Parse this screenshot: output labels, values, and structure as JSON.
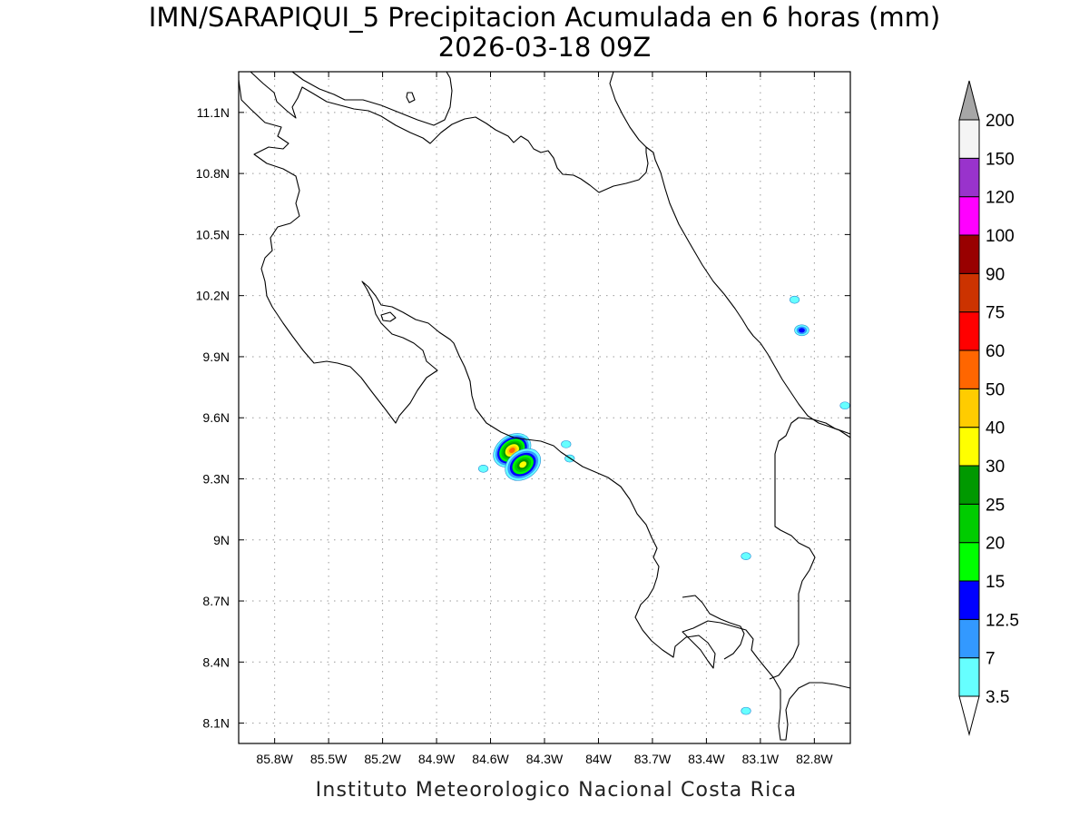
{
  "title": {
    "line1": "IMN/SARAPIQUI_5 Precipitacion Acumulada en 6 horas (mm)",
    "line2": "2026-03-18 09Z"
  },
  "footer": "Instituto Meteorologico Nacional Costa Rica",
  "map": {
    "lon_range": [
      -86.0,
      -82.6
    ],
    "lat_range": [
      8.0,
      11.3
    ],
    "x_ticks": [
      {
        "value": -85.8,
        "label": "85.8W"
      },
      {
        "value": -85.5,
        "label": "85.5W"
      },
      {
        "value": -85.2,
        "label": "85.2W"
      },
      {
        "value": -84.9,
        "label": "84.9W"
      },
      {
        "value": -84.6,
        "label": "84.6W"
      },
      {
        "value": -84.3,
        "label": "84.3W"
      },
      {
        "value": -84.0,
        "label": "84W"
      },
      {
        "value": -83.7,
        "label": "83.7W"
      },
      {
        "value": -83.4,
        "label": "83.4W"
      },
      {
        "value": -83.1,
        "label": "83.1W"
      },
      {
        "value": -82.8,
        "label": "82.8W"
      }
    ],
    "y_ticks": [
      {
        "value": 8.1,
        "label": "8.1N"
      },
      {
        "value": 8.4,
        "label": "8.4N"
      },
      {
        "value": 8.7,
        "label": "8.7N"
      },
      {
        "value": 9.0,
        "label": "9N"
      },
      {
        "value": 9.3,
        "label": "9.3N"
      },
      {
        "value": 9.6,
        "label": "9.6N"
      },
      {
        "value": 9.9,
        "label": "9.9N"
      },
      {
        "value": 10.2,
        "label": "10.2N"
      },
      {
        "value": 10.5,
        "label": "10.5N"
      },
      {
        "value": 10.8,
        "label": "10.8N"
      },
      {
        "value": 11.1,
        "label": "11.1N"
      }
    ],
    "grid": true,
    "precip_cells": [
      {
        "lon": -84.48,
        "lat": 9.44,
        "value": 55
      },
      {
        "lon": -84.42,
        "lat": 9.37,
        "value": 35
      },
      {
        "lon": -84.64,
        "lat": 9.35,
        "value": 5
      },
      {
        "lon": -84.18,
        "lat": 9.47,
        "value": 5
      },
      {
        "lon": -84.16,
        "lat": 9.4,
        "value": 5
      },
      {
        "lon": -82.87,
        "lat": 10.03,
        "value": 13
      },
      {
        "lon": -82.91,
        "lat": 10.18,
        "value": 4
      },
      {
        "lon": -82.63,
        "lat": 9.66,
        "value": 4
      },
      {
        "lon": -83.18,
        "lat": 8.92,
        "value": 4
      },
      {
        "lon": -83.18,
        "lat": 8.16,
        "value": 4
      }
    ]
  },
  "colorbar": {
    "labels": [
      "3.5",
      "7",
      "12.5",
      "15",
      "20",
      "25",
      "30",
      "40",
      "50",
      "60",
      "75",
      "90",
      "100",
      "120",
      "150",
      "200"
    ],
    "colors": [
      "#66ffff",
      "#3399ff",
      "#0000ff",
      "#00ff00",
      "#00cc00",
      "#009900",
      "#ffff00",
      "#ffcc00",
      "#ff6600",
      "#ff0000",
      "#cc3300",
      "#990000",
      "#ff00ff",
      "#9933cc",
      "#f4f4f4"
    ],
    "under_color": "#ffffff",
    "over_color": "#a6a6a6"
  }
}
